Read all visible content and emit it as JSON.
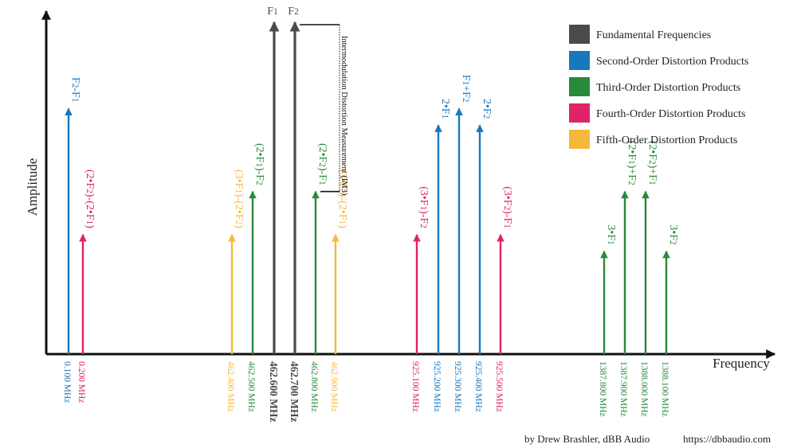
{
  "colors": {
    "fundamental": "#4a4a4a",
    "second": "#1878be",
    "third": "#278a3c",
    "fourth": "#e0226a",
    "fifth": "#f6b83c",
    "axis": "#111111"
  },
  "chart_data": {
    "type": "bar",
    "subtype": "spectrum-stems",
    "xlabel": "Frequency",
    "ylabel": "Amplitude",
    "axis_scale": "not to scale",
    "legend_position": "top-right",
    "legend": [
      {
        "key": "fundamental",
        "label": "Fundamental Frequencies"
      },
      {
        "key": "second",
        "label": "Second-Order Distortion Products"
      },
      {
        "key": "third",
        "label": "Third-Order Distortion Products"
      },
      {
        "key": "fourth",
        "label": "Fourth-Order Distortion Products"
      },
      {
        "key": "fifth",
        "label": "Fifth-Order Distortion Products"
      }
    ],
    "ylim": [
      0,
      1
    ],
    "products": [
      {
        "label": "F2-F1",
        "freq_label": "0.100 MHz",
        "freq_mhz": 0.1,
        "order": "second",
        "amplitude": 0.74
      },
      {
        "label": "(2•F2)-(2•F1)",
        "freq_label": "0.200 MHz",
        "freq_mhz": 0.2,
        "order": "fourth",
        "amplitude": 0.36
      },
      {
        "label": "(3•F1)-(2•F2)",
        "freq_label": "462.400 MHz",
        "freq_mhz": 462.4,
        "order": "fifth",
        "amplitude": 0.36
      },
      {
        "label": "(2•F1)-F2",
        "freq_label": "462.500 MHz",
        "freq_mhz": 462.5,
        "order": "third",
        "amplitude": 0.49
      },
      {
        "label": "F1",
        "freq_label": "462.600 MHz",
        "freq_mhz": 462.6,
        "order": "fundamental",
        "amplitude": 1.0
      },
      {
        "label": "F2",
        "freq_label": "462.700 MHz",
        "freq_mhz": 462.7,
        "order": "fundamental",
        "amplitude": 1.0
      },
      {
        "label": "(2•F2)-F1",
        "freq_label": "462.800 MHz",
        "freq_mhz": 462.8,
        "order": "third",
        "amplitude": 0.49
      },
      {
        "label": "(3•F2)-(2•F1)",
        "freq_label": "462.900 MHz",
        "freq_mhz": 462.9,
        "order": "fifth",
        "amplitude": 0.36
      },
      {
        "label": "(3•F1)-F2",
        "freq_label": "925.100 MHz",
        "freq_mhz": 925.1,
        "order": "fourth",
        "amplitude": 0.36
      },
      {
        "label": "2•F1",
        "freq_label": "925.200 MHz",
        "freq_mhz": 925.2,
        "order": "second",
        "amplitude": 0.69
      },
      {
        "label": "F1+F2",
        "freq_label": "925.300 MHz",
        "freq_mhz": 925.3,
        "order": "second",
        "amplitude": 0.74
      },
      {
        "label": "2•F2",
        "freq_label": "925.400 MHz",
        "freq_mhz": 925.4,
        "order": "second",
        "amplitude": 0.69
      },
      {
        "label": "(3•F2)-F1",
        "freq_label": "925.500 MHz",
        "freq_mhz": 925.5,
        "order": "fourth",
        "amplitude": 0.36
      },
      {
        "label": "3•F1",
        "freq_label": "1387.800 MHz",
        "freq_mhz": 1387.8,
        "order": "third",
        "amplitude": 0.31
      },
      {
        "label": "(2•F1)+F2",
        "freq_label": "1387.900 MHz",
        "freq_mhz": 1387.9,
        "order": "third",
        "amplitude": 0.49
      },
      {
        "label": "(2•F2)+F1",
        "freq_label": "1388.000 MHz",
        "freq_mhz": 1388.0,
        "order": "third",
        "amplitude": 0.49
      },
      {
        "label": "3•F2",
        "freq_label": "1388.100 MHz",
        "freq_mhz": 1388.1,
        "order": "third",
        "amplitude": 0.31
      }
    ],
    "annotation": {
      "text": "Intermodulation Distortion Measurement (IM3)",
      "from_product": "F2",
      "to_product": "(2•F2)-F1"
    }
  },
  "footer": {
    "credit": "by Drew Brashler, dBB Audio",
    "url": "https://dbbaudio.com"
  }
}
